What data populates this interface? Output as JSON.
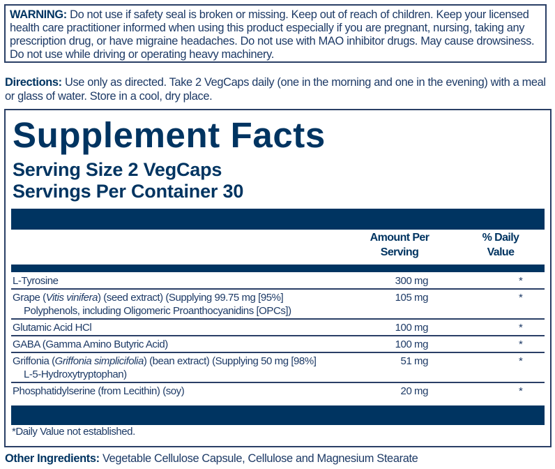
{
  "brand_color": "#003461",
  "warning": {
    "label": "WARNING:",
    "text": " Do not use if safety seal is broken or missing. Keep out of reach of children. Keep your licensed health care practitioner informed when using this product especially if you are pregnant, nursing, taking any prescription drug, or have migraine headaches. Do not use with MAO inhibitor drugs. May cause drowsiness. Do not use while driving or operating heavy machinery."
  },
  "directions": {
    "label": "Directions:",
    "text": " Use only as directed. Take 2 VegCaps daily (one in the morning and one in the evening) with a meal or glass of water. Store in a cool, dry place."
  },
  "facts": {
    "title": "Supplement Facts",
    "serving_size": "Serving Size 2 VegCaps",
    "servings_per_container": "Servings Per Container 30",
    "col_amount": [
      "Amount Per",
      "Serving"
    ],
    "col_dv": [
      "% Daily",
      "Value"
    ],
    "rows": [
      {
        "pre": "L-Tyrosine",
        "ital": "",
        "post": "",
        "line2": "",
        "amount": "300 mg",
        "dv": "*"
      },
      {
        "pre": "Grape (",
        "ital": "Vitis vinifera",
        "post": ") (seed extract) (Supplying 99.75 mg [95%]",
        "line2": "Polyphenols, including Oligomeric Proanthocyanidins [OPCs])",
        "amount": "105 mg",
        "dv": "*"
      },
      {
        "pre": "Glutamic Acid HCl",
        "ital": "",
        "post": "",
        "line2": "",
        "amount": "100 mg",
        "dv": "*"
      },
      {
        "pre": "GABA (Gamma Amino Butyric Acid)",
        "ital": "",
        "post": "",
        "line2": "",
        "amount": "100 mg",
        "dv": "*"
      },
      {
        "pre": "Griffonia (",
        "ital": "Griffonia simplicifolia",
        "post": ") (bean extract) (Supplying 50 mg [98%]",
        "line2": "L-5-Hydroxytryptophan)",
        "amount": "51 mg",
        "dv": "*"
      },
      {
        "pre": "Phosphatidylserine (from Lecithin) (soy)",
        "ital": "",
        "post": "",
        "line2": "",
        "amount": "20 mg",
        "dv": "*"
      }
    ],
    "footnote": "*Daily Value not established."
  },
  "other_ingredients": {
    "label": "Other Ingredients:",
    "text": " Vegetable Cellulose Capsule, Cellulose and Magnesium Stearate"
  }
}
